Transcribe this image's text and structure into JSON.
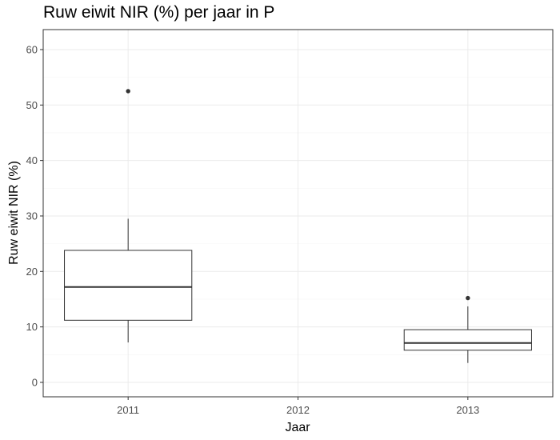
{
  "chart_data": {
    "type": "box",
    "title": "Ruw eiwit NIR (%) per jaar in P",
    "xlabel": "Jaar",
    "ylabel": "Ruw eiwit NIR (%)",
    "categories": [
      "2011",
      "2012",
      "2013"
    ],
    "ylim": [
      -2.6,
      63.6
    ],
    "yticks": [
      0,
      10,
      20,
      30,
      40,
      50,
      60
    ],
    "grid": true,
    "boxes": [
      {
        "category": "2011",
        "lower_whisker": 7.2,
        "q1": 11.2,
        "median": 17.2,
        "q3": 23.8,
        "upper_whisker": 29.5,
        "outliers": [
          52.5
        ]
      },
      {
        "category": "2013",
        "lower_whisker": 3.5,
        "q1": 5.8,
        "median": 7.1,
        "q3": 9.5,
        "upper_whisker": 13.7,
        "outliers": [
          15.2
        ]
      }
    ],
    "colors": {
      "panel_border": "#333333",
      "grid_major": "#ebebeb",
      "grid_minor": "#f5f5f5",
      "box_line": "#333333",
      "box_fill": "#ffffff"
    }
  }
}
